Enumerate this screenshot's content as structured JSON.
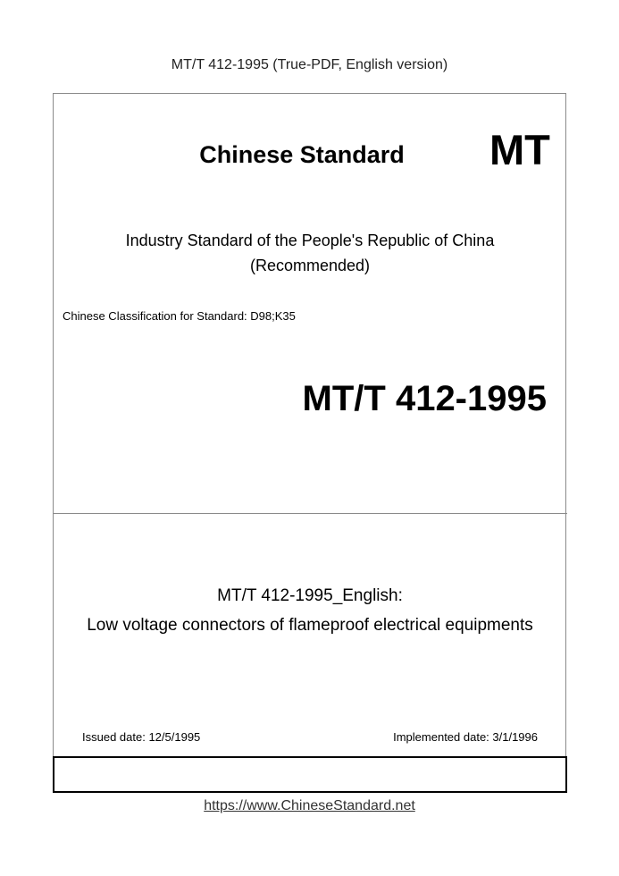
{
  "header": "MT/T 412-1995 (True-PDF, English version)",
  "cover": {
    "heading": "Chinese Standard",
    "mark": "MT",
    "industry_line": "Industry Standard of the People's Republic of China",
    "recommended": "(Recommended)",
    "classification": "Chinese Classification for Standard: D98;K35",
    "code": "MT/T 412-1995",
    "title_line1": "MT/T 412-1995_English:",
    "title_line2": "Low voltage connectors of flameproof electrical equipments",
    "issued": "Issued date: 12/5/1995",
    "implemented": "Implemented date: 3/1/1996"
  },
  "footer_link": "https://www.ChineseStandard.net"
}
